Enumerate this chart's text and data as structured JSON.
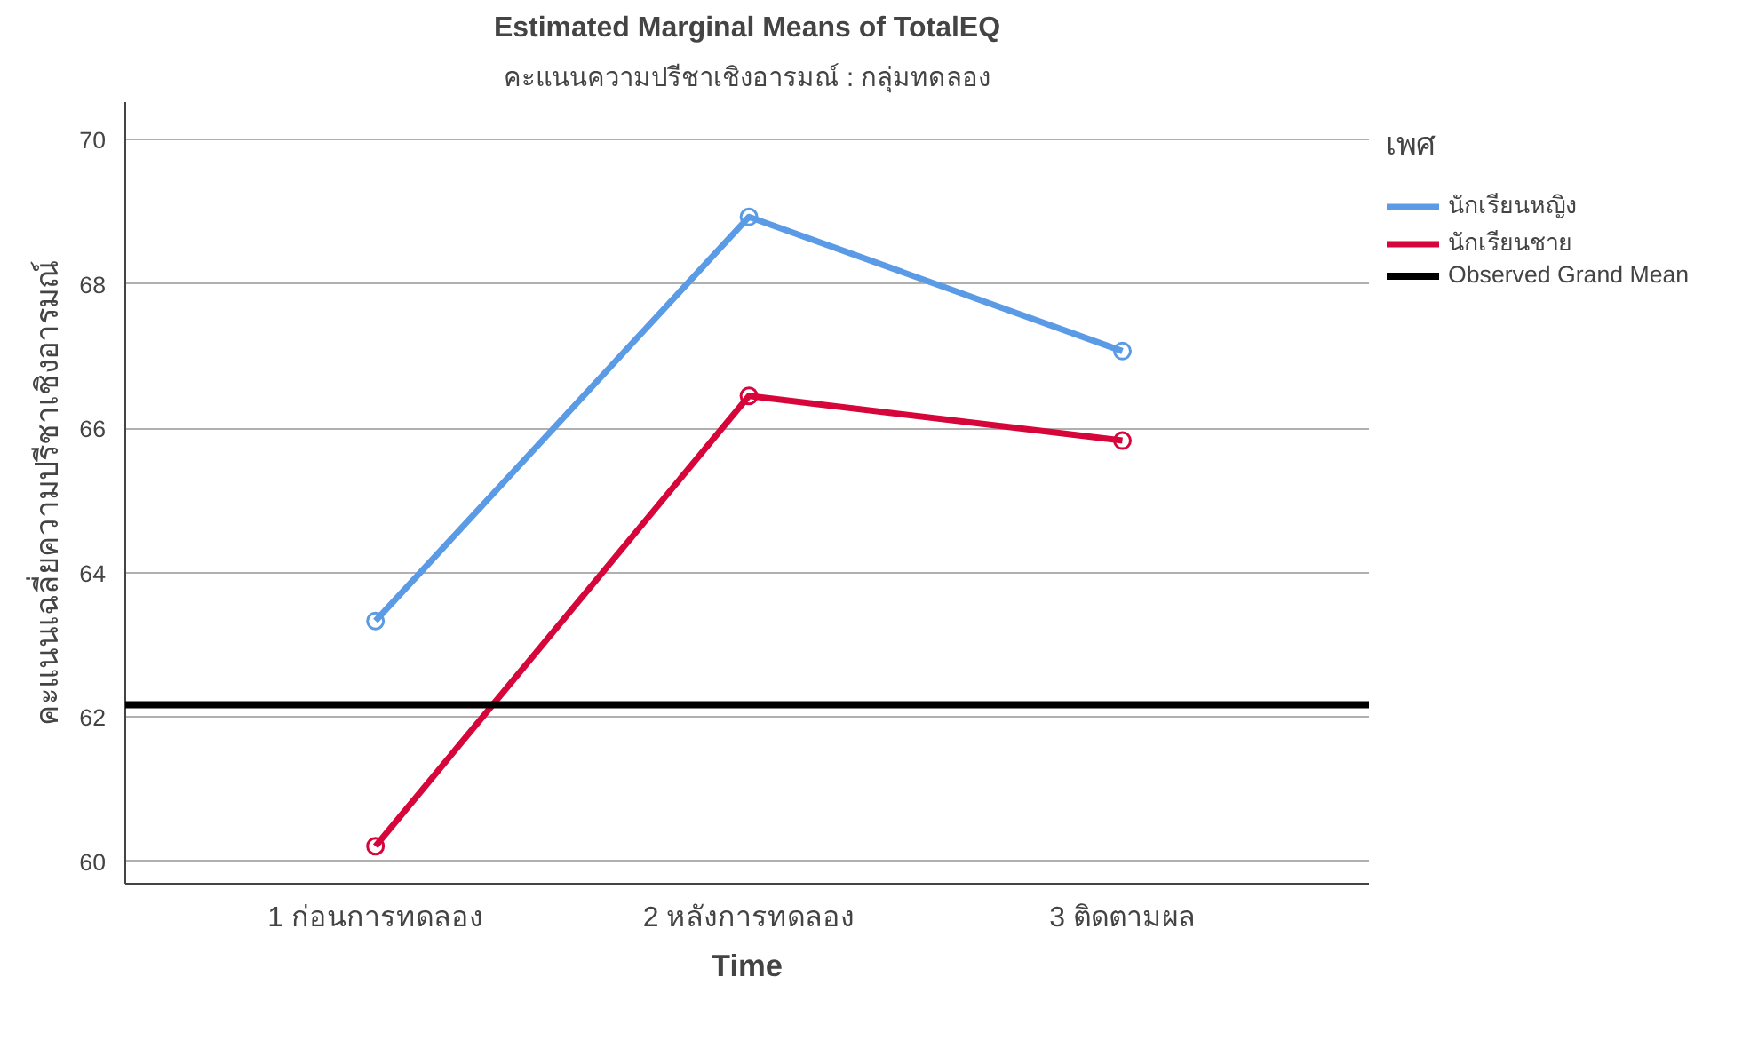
{
  "chart_data": {
    "type": "line",
    "title": "Estimated Marginal Means of TotalEQ",
    "subtitle": "คะแนนความปรีชาเชิงอารมณ์ : กลุ่มทดลอง",
    "xlabel": "Time",
    "ylabel": "คะแนนเฉลี่ยความปรีชาเชิงอารมณ์",
    "legend_title": "เพศ",
    "categories": [
      "1 ก่อนการทดลอง",
      "2 หลังการทดลอง",
      "3 ติดตามผล"
    ],
    "series": [
      {
        "name": "นักเรียนหญิง",
        "color": "#5b9be6",
        "values": [
          63.33,
          68.93,
          67.07
        ]
      },
      {
        "name": "นักเรียนชาย",
        "color": "#d6063a",
        "values": [
          60.21,
          66.45,
          65.83
        ]
      }
    ],
    "ref_lines": [
      {
        "axis": "y",
        "value": 62.17,
        "label": "Observed Grand Mean",
        "color": "#000000",
        "line_style": "solid"
      }
    ],
    "ylim": [
      59.69,
      70.52
    ],
    "yticks": [
      60,
      62,
      64,
      66,
      68,
      70
    ],
    "grid": "y",
    "legend": "right",
    "marker": "circle",
    "line_style": "solid"
  }
}
